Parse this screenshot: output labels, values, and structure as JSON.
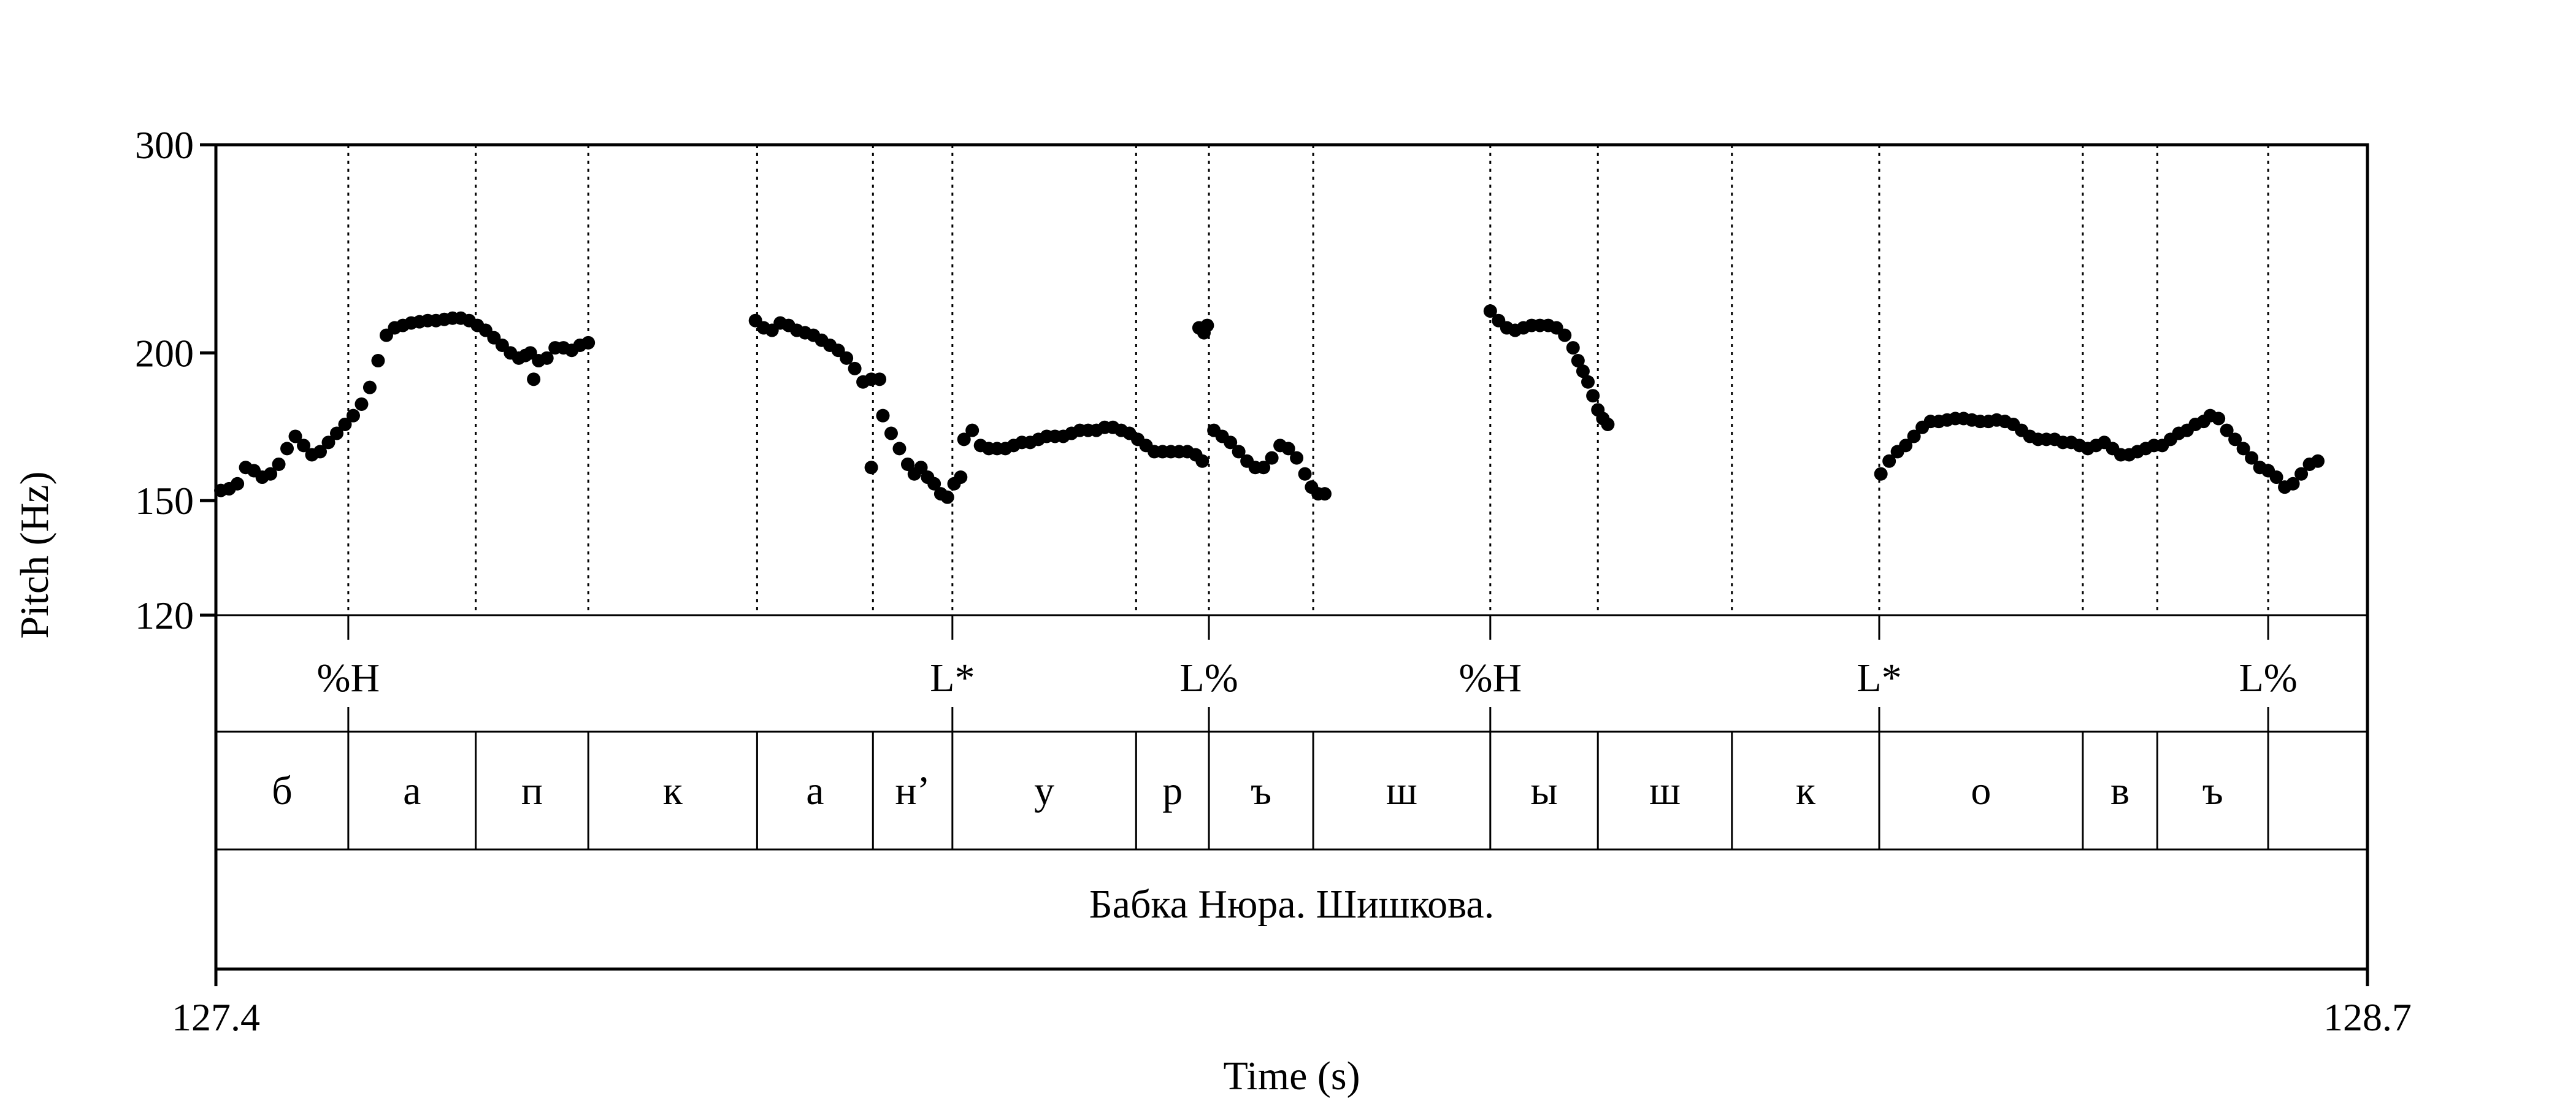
{
  "chart_data": {
    "type": "scatter",
    "title": "",
    "xlabel": "Time (s)",
    "ylabel": "Pitch (Hz)",
    "xlim": [
      127.4,
      128.7
    ],
    "ylim": [
      120,
      300
    ],
    "y_scale": "log",
    "yticks": [
      120,
      150,
      200,
      300
    ],
    "ytick_labels": [
      "120",
      "150",
      "200",
      "300"
    ],
    "xtick_labels": [
      "127.4",
      "128.7"
    ],
    "grid": "dotted vertical lines at segment boundaries",
    "marker_color": "#000000",
    "series": [
      {
        "points": [
          [
            127.403,
            153
          ],
          [
            127.408,
            153.5
          ],
          [
            127.413,
            155
          ],
          [
            127.418,
            160
          ],
          [
            127.423,
            159
          ],
          [
            127.428,
            157
          ],
          [
            127.433,
            158
          ],
          [
            127.438,
            161
          ],
          [
            127.443,
            166
          ],
          [
            127.448,
            170
          ],
          [
            127.453,
            167
          ],
          [
            127.458,
            164
          ],
          [
            127.463,
            165
          ],
          [
            127.468,
            168
          ],
          [
            127.473,
            171
          ],
          [
            127.478,
            174
          ],
          [
            127.483,
            177
          ],
          [
            127.488,
            181
          ],
          [
            127.493,
            187
          ],
          [
            127.498,
            197
          ],
          [
            127.503,
            207
          ],
          [
            127.508,
            210
          ],
          [
            127.513,
            211
          ],
          [
            127.518,
            212
          ],
          [
            127.523,
            212.5
          ],
          [
            127.528,
            213
          ],
          [
            127.533,
            213
          ],
          [
            127.538,
            213.5
          ],
          [
            127.543,
            214
          ],
          [
            127.548,
            214
          ],
          [
            127.553,
            213
          ],
          [
            127.558,
            211
          ],
          [
            127.563,
            209
          ],
          [
            127.568,
            206
          ],
          [
            127.573,
            203
          ],
          [
            127.578,
            200
          ],
          [
            127.583,
            198
          ],
          [
            127.587,
            199
          ],
          [
            127.59,
            200
          ],
          [
            127.592,
            190
          ],
          [
            127.595,
            197
          ],
          [
            127.6,
            198
          ],
          [
            127.605,
            202
          ],
          [
            127.61,
            202
          ],
          [
            127.615,
            201
          ],
          [
            127.62,
            203
          ],
          [
            127.625,
            204
          ],
          [
            127.726,
            213
          ],
          [
            127.731,
            210
          ],
          [
            127.736,
            209
          ],
          [
            127.741,
            212
          ],
          [
            127.746,
            211
          ],
          [
            127.751,
            209
          ],
          [
            127.756,
            208
          ],
          [
            127.761,
            207
          ],
          [
            127.766,
            205
          ],
          [
            127.771,
            203
          ],
          [
            127.776,
            201
          ],
          [
            127.781,
            198
          ],
          [
            127.786,
            194
          ],
          [
            127.791,
            189
          ],
          [
            127.796,
            190
          ],
          [
            127.801,
            190
          ],
          [
            127.796,
            160
          ],
          [
            127.803,
            177
          ],
          [
            127.808,
            171
          ],
          [
            127.813,
            166
          ],
          [
            127.818,
            161
          ],
          [
            127.822,
            158
          ],
          [
            127.826,
            160
          ],
          [
            127.83,
            157
          ],
          [
            127.834,
            155
          ],
          [
            127.838,
            152
          ],
          [
            127.842,
            151
          ],
          [
            127.846,
            155
          ],
          [
            127.85,
            157
          ],
          [
            127.852,
            169
          ],
          [
            127.857,
            172
          ],
          [
            127.862,
            167
          ],
          [
            127.867,
            166
          ],
          [
            127.872,
            166
          ],
          [
            127.877,
            166
          ],
          [
            127.882,
            167
          ],
          [
            127.887,
            168
          ],
          [
            127.892,
            168
          ],
          [
            127.897,
            169
          ],
          [
            127.902,
            170
          ],
          [
            127.907,
            170
          ],
          [
            127.912,
            170
          ],
          [
            127.917,
            171
          ],
          [
            127.922,
            172
          ],
          [
            127.927,
            172
          ],
          [
            127.932,
            172
          ],
          [
            127.937,
            173
          ],
          [
            127.942,
            173
          ],
          [
            127.947,
            172
          ],
          [
            127.952,
            171
          ],
          [
            127.957,
            169
          ],
          [
            127.962,
            167
          ],
          [
            127.967,
            165
          ],
          [
            127.972,
            165
          ],
          [
            127.977,
            165
          ],
          [
            127.982,
            165
          ],
          [
            127.987,
            165
          ],
          [
            127.992,
            164
          ],
          [
            127.996,
            162
          ],
          [
            127.994,
            210
          ],
          [
            127.997,
            208
          ],
          [
            127.999,
            211
          ],
          [
            128.003,
            172
          ],
          [
            128.008,
            170
          ],
          [
            128.013,
            168
          ],
          [
            128.018,
            165
          ],
          [
            128.023,
            162
          ],
          [
            128.028,
            160
          ],
          [
            128.033,
            160
          ],
          [
            128.038,
            163
          ],
          [
            128.043,
            167
          ],
          [
            128.048,
            166
          ],
          [
            128.053,
            163
          ],
          [
            128.058,
            158
          ],
          [
            128.062,
            154
          ],
          [
            128.066,
            152
          ],
          [
            128.07,
            152
          ],
          [
            128.17,
            217
          ],
          [
            128.175,
            213
          ],
          [
            128.18,
            210
          ],
          [
            128.185,
            209
          ],
          [
            128.19,
            210
          ],
          [
            128.195,
            211
          ],
          [
            128.2,
            211
          ],
          [
            128.205,
            211
          ],
          [
            128.21,
            210
          ],
          [
            128.215,
            207
          ],
          [
            128.22,
            202
          ],
          [
            128.223,
            197
          ],
          [
            128.226,
            193
          ],
          [
            128.229,
            189
          ],
          [
            128.232,
            184
          ],
          [
            128.235,
            179
          ],
          [
            128.238,
            176
          ],
          [
            128.241,
            174
          ],
          [
            128.406,
            158
          ],
          [
            128.411,
            162
          ],
          [
            128.416,
            165
          ],
          [
            128.421,
            167
          ],
          [
            128.426,
            170
          ],
          [
            128.431,
            173
          ],
          [
            128.436,
            175
          ],
          [
            128.441,
            175
          ],
          [
            128.446,
            175.5
          ],
          [
            128.451,
            176
          ],
          [
            128.456,
            176
          ],
          [
            128.461,
            175.5
          ],
          [
            128.466,
            175
          ],
          [
            128.471,
            175
          ],
          [
            128.476,
            175.5
          ],
          [
            128.481,
            175
          ],
          [
            128.486,
            174
          ],
          [
            128.491,
            172
          ],
          [
            128.496,
            170
          ],
          [
            128.501,
            169
          ],
          [
            128.506,
            169
          ],
          [
            128.511,
            169
          ],
          [
            128.516,
            168
          ],
          [
            128.521,
            168
          ],
          [
            128.526,
            167
          ],
          [
            128.531,
            166
          ],
          [
            128.536,
            167
          ],
          [
            128.541,
            168
          ],
          [
            128.546,
            166
          ],
          [
            128.551,
            164
          ],
          [
            128.556,
            164
          ],
          [
            128.561,
            165
          ],
          [
            128.566,
            166
          ],
          [
            128.571,
            167
          ],
          [
            128.576,
            167
          ],
          [
            128.581,
            169
          ],
          [
            128.586,
            171
          ],
          [
            128.591,
            172
          ],
          [
            128.596,
            174
          ],
          [
            128.601,
            175
          ],
          [
            128.605,
            177
          ],
          [
            128.61,
            176
          ],
          [
            128.615,
            172
          ],
          [
            128.62,
            169
          ],
          [
            128.625,
            166
          ],
          [
            128.63,
            163
          ],
          [
            128.635,
            160
          ],
          [
            128.64,
            159
          ],
          [
            128.645,
            157
          ],
          [
            128.65,
            154
          ],
          [
            128.655,
            155
          ],
          [
            128.66,
            158
          ],
          [
            128.665,
            161
          ],
          [
            128.67,
            162
          ]
        ]
      }
    ],
    "tone_tier": [
      {
        "time": 127.48,
        "label": "%H"
      },
      {
        "time": 127.845,
        "label": "L*"
      },
      {
        "time": 128.0,
        "label": "L%"
      },
      {
        "time": 128.17,
        "label": "%H"
      },
      {
        "time": 128.405,
        "label": "L*"
      },
      {
        "time": 128.64,
        "label": "L%"
      }
    ],
    "segment_tier": [
      {
        "start": 127.4,
        "end": 127.48,
        "label": "б"
      },
      {
        "start": 127.48,
        "end": 127.557,
        "label": "а"
      },
      {
        "start": 127.557,
        "end": 127.625,
        "label": "п"
      },
      {
        "start": 127.625,
        "end": 127.727,
        "label": "к"
      },
      {
        "start": 127.727,
        "end": 127.797,
        "label": "а"
      },
      {
        "start": 127.797,
        "end": 127.845,
        "label": "н’"
      },
      {
        "start": 127.845,
        "end": 127.956,
        "label": "у"
      },
      {
        "start": 127.956,
        "end": 128.0,
        "label": "р"
      },
      {
        "start": 128.0,
        "end": 128.063,
        "label": "ъ"
      },
      {
        "start": 128.063,
        "end": 128.17,
        "label": "ш"
      },
      {
        "start": 128.17,
        "end": 128.235,
        "label": "ы"
      },
      {
        "start": 128.235,
        "end": 128.316,
        "label": "ш"
      },
      {
        "start": 128.316,
        "end": 128.405,
        "label": "к"
      },
      {
        "start": 128.405,
        "end": 128.528,
        "label": "о"
      },
      {
        "start": 128.528,
        "end": 128.573,
        "label": "в"
      },
      {
        "start": 128.573,
        "end": 128.64,
        "label": "ъ"
      },
      {
        "start": 128.64,
        "end": 128.7,
        "label": ""
      }
    ],
    "phrase_tier": {
      "label": "Бабка Нюра. Шишкова."
    }
  }
}
